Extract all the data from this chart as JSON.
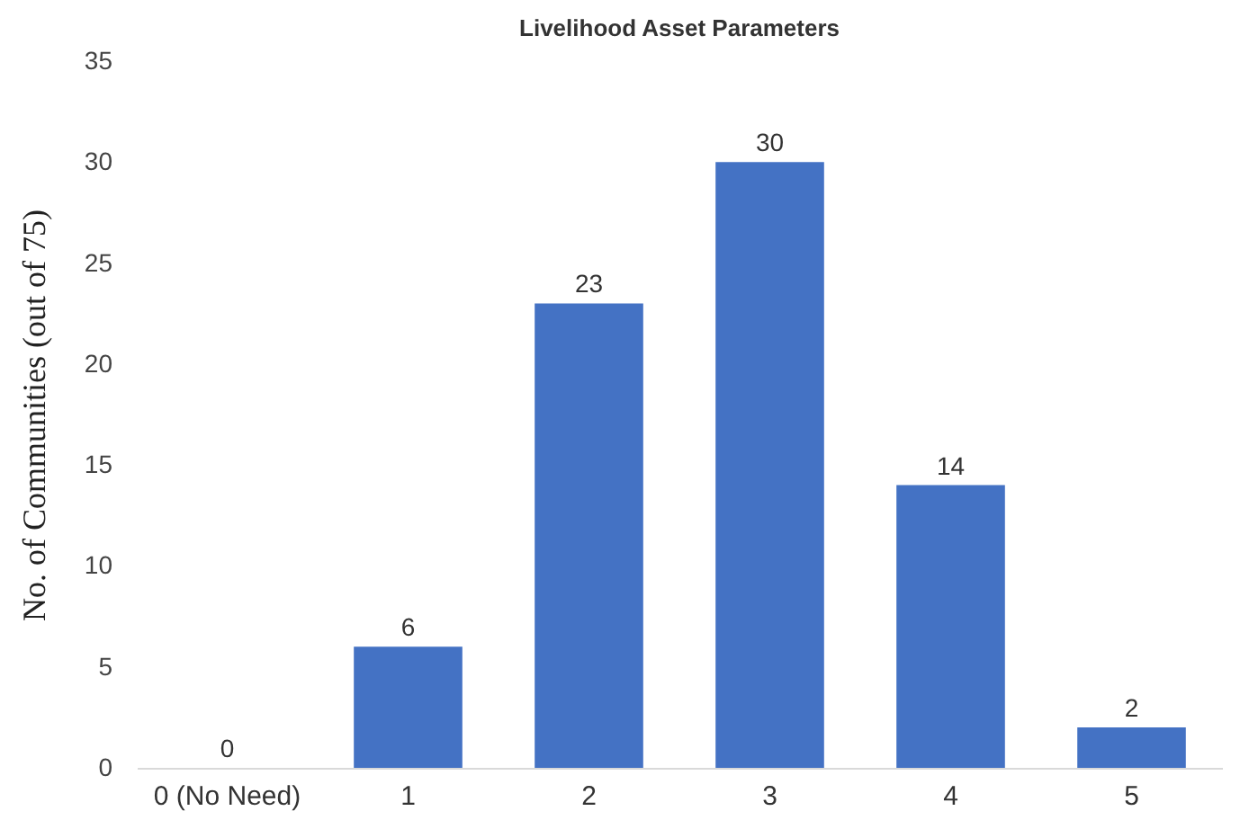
{
  "chart_data": {
    "type": "bar",
    "title": "Livelihood Asset Parameters",
    "ylabel": "No. of Communities (out of 75)",
    "categories": [
      "0 (No Need)",
      "1",
      "2",
      "3",
      "4",
      "5"
    ],
    "values": [
      0,
      6,
      23,
      30,
      14,
      2
    ],
    "color": "#4472c4",
    "ylim": [
      0,
      35
    ],
    "yticks": [
      0,
      5,
      10,
      15,
      20,
      25,
      30,
      35
    ],
    "grid": false,
    "data_labels": true
  }
}
